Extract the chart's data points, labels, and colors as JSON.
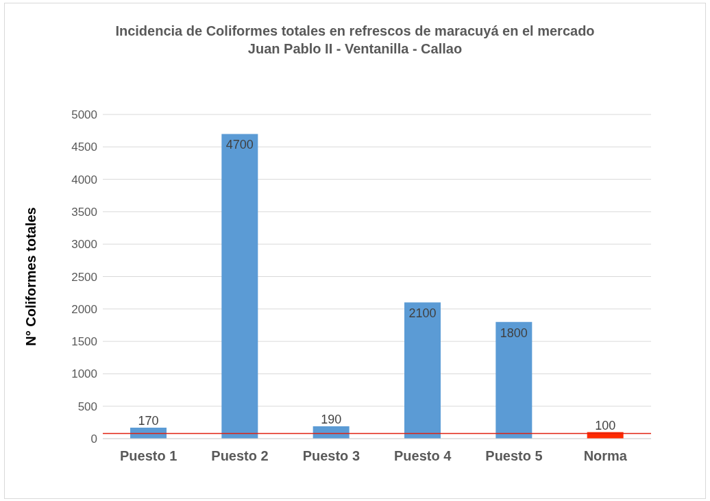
{
  "chart_data": {
    "type": "bar",
    "title": "Incidencia de Coliformes totales en refrescos de maracuyá en el mercado\nJuan Pablo II - Ventanilla - Callao",
    "ylabel": "N° Coliformes totales",
    "categories": [
      "Puesto 1",
      "Puesto 2",
      "Puesto 3",
      "Puesto 4",
      "Puesto 5",
      "Norma"
    ],
    "values": [
      170,
      4700,
      190,
      2100,
      1800,
      100
    ],
    "colors": [
      "#5b9bd5",
      "#5b9bd5",
      "#5b9bd5",
      "#5b9bd5",
      "#5b9bd5",
      "#ff2a00"
    ],
    "ylim": [
      0,
      5000
    ],
    "yticks": [
      0,
      500,
      1000,
      1500,
      2000,
      2500,
      3000,
      3500,
      4000,
      4500,
      5000
    ],
    "grid": "y",
    "data_labels": true,
    "ref_lines": [
      {
        "axis": "y",
        "value": 80,
        "color": "#e02010"
      }
    ]
  }
}
